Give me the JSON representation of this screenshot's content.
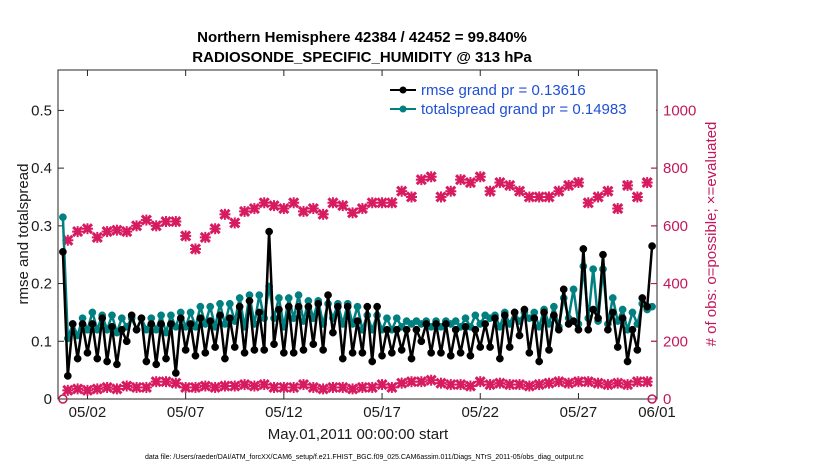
{
  "chart_data": {
    "type": "line",
    "title": "Northern Hemisphere 42384 / 42452 = 99.840%",
    "subtitle": "RADIOSONDE_SPECIFIC_HUMIDITY @ 313 hPa",
    "xlabel": "May.01,2011 00:00:00 start",
    "ylabel": "rmse and totalspread",
    "y2label": "# of obs: o=possible; ×=evaluated",
    "xlim": [
      0.5,
      31.0
    ],
    "ylim": [
      0,
      0.57
    ],
    "y2lim": [
      0,
      1140
    ],
    "x_ticks": [
      {
        "value": 2,
        "label": "05/02"
      },
      {
        "value": 7,
        "label": "05/07"
      },
      {
        "value": 12,
        "label": "05/12"
      },
      {
        "value": 17,
        "label": "05/17"
      },
      {
        "value": 22,
        "label": "05/22"
      },
      {
        "value": 27,
        "label": "05/27"
      },
      {
        "value": 31,
        "label": "06/01"
      }
    ],
    "y_ticks": [
      {
        "value": 0,
        "label": "0"
      },
      {
        "value": 0.1,
        "label": "0.1"
      },
      {
        "value": 0.2,
        "label": "0.2"
      },
      {
        "value": 0.3,
        "label": "0.3"
      },
      {
        "value": 0.4,
        "label": "0.4"
      },
      {
        "value": 0.5,
        "label": "0.5"
      }
    ],
    "y2_ticks": [
      {
        "value": 0,
        "label": "0"
      },
      {
        "value": 200,
        "label": "200"
      },
      {
        "value": 400,
        "label": "400"
      },
      {
        "value": 600,
        "label": "600"
      },
      {
        "value": 800,
        "label": "800"
      },
      {
        "value": 1000,
        "label": "1000"
      }
    ],
    "legend": {
      "position": "top-right",
      "entries": [
        {
          "label": "rmse grand pr = 0.13616",
          "color": "#000000"
        },
        {
          "label": "totalspread grand pr = 0.14983",
          "color": "#008080"
        }
      ]
    },
    "series": [
      {
        "name": "rmse",
        "axis": "left",
        "color": "#000000",
        "x": [
          0.75,
          1.0,
          1.25,
          1.5,
          1.75,
          2.0,
          2.25,
          2.5,
          2.75,
          3.0,
          3.25,
          3.5,
          3.75,
          4.0,
          4.25,
          4.5,
          4.75,
          5.0,
          5.25,
          5.5,
          5.75,
          6.0,
          6.25,
          6.5,
          6.75,
          7.0,
          7.25,
          7.5,
          7.75,
          8.0,
          8.25,
          8.5,
          8.75,
          9.0,
          9.25,
          9.5,
          9.75,
          10.0,
          10.25,
          10.5,
          10.75,
          11.0,
          11.25,
          11.5,
          11.75,
          12.0,
          12.25,
          12.5,
          12.75,
          13.0,
          13.25,
          13.5,
          13.75,
          14.0,
          14.25,
          14.5,
          14.75,
          15.0,
          15.25,
          15.5,
          15.75,
          16.0,
          16.25,
          16.5,
          16.75,
          17.0,
          17.25,
          17.5,
          17.75,
          18.0,
          18.25,
          18.5,
          18.75,
          19.0,
          19.25,
          19.5,
          19.75,
          20.0,
          20.25,
          20.5,
          20.75,
          21.0,
          21.25,
          21.5,
          21.75,
          22.0,
          22.25,
          22.5,
          22.75,
          23.0,
          23.25,
          23.5,
          23.75,
          24.0,
          24.25,
          24.5,
          24.75,
          25.0,
          25.25,
          25.5,
          25.75,
          26.0,
          26.25,
          26.5,
          26.75,
          27.0,
          27.25,
          27.5,
          27.75,
          28.0,
          28.25,
          28.5,
          28.75,
          29.0,
          29.25,
          29.5,
          29.75,
          30.0,
          30.25,
          30.5,
          30.75
        ],
        "values": [
          0.255,
          0.04,
          0.13,
          0.07,
          0.13,
          0.08,
          0.13,
          0.07,
          0.14,
          0.065,
          0.125,
          0.06,
          0.12,
          0.1,
          0.145,
          0.12,
          0.14,
          0.065,
          0.13,
          0.06,
          0.13,
          0.07,
          0.13,
          0.045,
          0.14,
          0.085,
          0.13,
          0.075,
          0.14,
          0.08,
          0.135,
          0.09,
          0.145,
          0.07,
          0.14,
          0.09,
          0.16,
          0.08,
          0.17,
          0.085,
          0.15,
          0.085,
          0.29,
          0.095,
          0.155,
          0.08,
          0.16,
          0.08,
          0.16,
          0.085,
          0.16,
          0.095,
          0.165,
          0.085,
          0.18,
          0.115,
          0.16,
          0.07,
          0.16,
          0.08,
          0.135,
          0.08,
          0.16,
          0.065,
          0.16,
          0.075,
          0.12,
          0.08,
          0.12,
          0.085,
          0.12,
          0.07,
          0.12,
          0.1,
          0.13,
          0.08,
          0.13,
          0.08,
          0.13,
          0.075,
          0.12,
          0.08,
          0.125,
          0.075,
          0.12,
          0.09,
          0.13,
          0.09,
          0.14,
          0.07,
          0.145,
          0.09,
          0.15,
          0.11,
          0.155,
          0.08,
          0.14,
          0.065,
          0.15,
          0.085,
          0.145,
          0.12,
          0.19,
          0.13,
          0.135,
          0.12,
          0.26,
          0.12,
          0.155,
          0.14,
          0.25,
          0.12,
          0.15,
          0.09,
          0.14,
          0.065,
          0.12,
          0.085,
          0.175,
          0.16,
          0.265
        ]
      },
      {
        "name": "totalspread",
        "axis": "left",
        "color": "#008080",
        "x": [
          0.75,
          1.0,
          1.25,
          1.5,
          1.75,
          2.0,
          2.25,
          2.5,
          2.75,
          3.0,
          3.25,
          3.5,
          3.75,
          4.0,
          4.25,
          4.5,
          4.75,
          5.0,
          5.25,
          5.5,
          5.75,
          6.0,
          6.25,
          6.5,
          6.75,
          7.0,
          7.25,
          7.5,
          7.75,
          8.0,
          8.25,
          8.5,
          8.75,
          9.0,
          9.25,
          9.5,
          9.75,
          10.0,
          10.25,
          10.5,
          10.75,
          11.0,
          11.25,
          11.5,
          11.75,
          12.0,
          12.25,
          12.5,
          12.75,
          13.0,
          13.25,
          13.5,
          13.75,
          14.0,
          14.25,
          14.5,
          14.75,
          15.0,
          15.25,
          15.5,
          15.75,
          16.0,
          16.25,
          16.5,
          16.75,
          17.0,
          17.25,
          17.5,
          17.75,
          18.0,
          18.25,
          18.5,
          18.75,
          19.0,
          19.25,
          19.5,
          19.75,
          20.0,
          20.25,
          20.5,
          20.75,
          21.0,
          21.25,
          21.5,
          21.75,
          22.0,
          22.25,
          22.5,
          22.75,
          23.0,
          23.25,
          23.5,
          23.75,
          24.0,
          24.25,
          24.5,
          24.75,
          25.0,
          25.25,
          25.5,
          25.75,
          26.0,
          26.25,
          26.5,
          26.75,
          27.0,
          27.25,
          27.5,
          27.75,
          28.0,
          28.25,
          28.5,
          28.75,
          29.0,
          29.25,
          29.5,
          29.75,
          30.0,
          30.25,
          30.5,
          30.75
        ],
        "values": [
          0.315,
          0.105,
          0.13,
          0.11,
          0.14,
          0.12,
          0.15,
          0.12,
          0.145,
          0.12,
          0.145,
          0.115,
          0.14,
          0.125,
          0.14,
          0.12,
          0.14,
          0.12,
          0.14,
          0.12,
          0.145,
          0.115,
          0.145,
          0.125,
          0.15,
          0.125,
          0.15,
          0.125,
          0.16,
          0.13,
          0.16,
          0.125,
          0.165,
          0.13,
          0.165,
          0.135,
          0.175,
          0.125,
          0.18,
          0.13,
          0.18,
          0.14,
          0.195,
          0.14,
          0.175,
          0.125,
          0.175,
          0.14,
          0.18,
          0.135,
          0.17,
          0.14,
          0.17,
          0.13,
          0.165,
          0.14,
          0.165,
          0.13,
          0.165,
          0.13,
          0.16,
          0.12,
          0.145,
          0.12,
          0.145,
          0.12,
          0.14,
          0.12,
          0.14,
          0.125,
          0.135,
          0.13,
          0.135,
          0.13,
          0.135,
          0.125,
          0.135,
          0.125,
          0.135,
          0.13,
          0.135,
          0.125,
          0.14,
          0.125,
          0.145,
          0.13,
          0.145,
          0.14,
          0.145,
          0.125,
          0.15,
          0.13,
          0.15,
          0.135,
          0.15,
          0.14,
          0.15,
          0.125,
          0.155,
          0.13,
          0.16,
          0.125,
          0.175,
          0.14,
          0.19,
          0.13,
          0.23,
          0.14,
          0.225,
          0.135,
          0.225,
          0.13,
          0.175,
          0.135,
          0.155,
          0.12,
          0.15,
          0.13,
          0.165,
          0.155,
          0.16
        ]
      },
      {
        "name": "# of obs possible",
        "axis": "right",
        "color": "#c2185b",
        "marker": "o",
        "x": [
          0.75,
          30.75
        ],
        "values": [
          0,
          0
        ]
      },
      {
        "name": "# of obs evaluated (upper)",
        "axis": "right",
        "color": "#d81b60",
        "marker": "x",
        "x": [
          1.0,
          1.5,
          2.0,
          2.5,
          3.0,
          3.5,
          4.0,
          4.5,
          5.0,
          5.5,
          6.0,
          6.5,
          7.0,
          7.5,
          8.0,
          8.5,
          9.0,
          9.5,
          10.0,
          10.5,
          11.0,
          11.5,
          12.0,
          12.5,
          13.0,
          13.5,
          14.0,
          14.5,
          15.0,
          15.5,
          16.0,
          16.5,
          17.0,
          17.5,
          18.0,
          18.5,
          19.0,
          19.5,
          20.0,
          20.5,
          21.0,
          21.5,
          22.0,
          22.5,
          23.0,
          23.5,
          24.0,
          24.5,
          25.0,
          25.5,
          26.0,
          26.5,
          27.0,
          27.5,
          28.0,
          28.5,
          29.0,
          29.5,
          30.0,
          30.5
        ],
        "values": [
          550,
          580,
          590,
          560,
          580,
          585,
          580,
          600,
          620,
          600,
          615,
          615,
          565,
          520,
          560,
          590,
          640,
          610,
          650,
          660,
          680,
          670,
          660,
          680,
          650,
          660,
          640,
          680,
          670,
          645,
          660,
          680,
          680,
          680,
          720,
          700,
          760,
          770,
          700,
          720,
          760,
          750,
          770,
          720,
          750,
          740,
          720,
          700,
          700,
          700,
          720,
          740,
          750,
          680,
          700,
          720,
          660,
          740,
          700,
          750
        ]
      },
      {
        "name": "# of obs evaluated (lower)",
        "axis": "right",
        "color": "#d81b60",
        "marker": "x",
        "x": [
          1.0,
          1.5,
          2.0,
          2.5,
          3.0,
          3.5,
          4.0,
          4.5,
          5.0,
          5.5,
          6.0,
          6.5,
          7.0,
          7.5,
          8.0,
          8.5,
          9.0,
          9.5,
          10.0,
          10.5,
          11.0,
          11.5,
          12.0,
          12.5,
          13.0,
          13.5,
          14.0,
          14.5,
          15.0,
          15.5,
          16.0,
          16.5,
          17.0,
          17.5,
          18.0,
          18.5,
          19.0,
          19.5,
          20.0,
          20.5,
          21.0,
          21.5,
          22.0,
          22.5,
          23.0,
          23.5,
          24.0,
          24.5,
          25.0,
          25.5,
          26.0,
          26.5,
          27.0,
          27.5,
          28.0,
          28.5,
          29.0,
          29.5,
          30.0,
          30.5
        ],
        "values": [
          30,
          35,
          30,
          35,
          40,
          35,
          45,
          40,
          40,
          60,
          60,
          55,
          40,
          40,
          45,
          40,
          45,
          45,
          50,
          45,
          50,
          40,
          40,
          40,
          50,
          40,
          35,
          40,
          40,
          35,
          40,
          40,
          50,
          40,
          55,
          60,
          60,
          65,
          55,
          50,
          50,
          45,
          60,
          50,
          55,
          50,
          50,
          45,
          50,
          55,
          60,
          55,
          60,
          60,
          55,
          50,
          55,
          50,
          60,
          60
        ]
      }
    ],
    "footnote": "data file: /Users/raeder/DAI/ATM_forcXX/CAM6_setup/f.e21.FHIST_BGC.f09_025.CAM6assim.011/Diags_NTrS_2011-05/obs_diag_output.nc"
  }
}
